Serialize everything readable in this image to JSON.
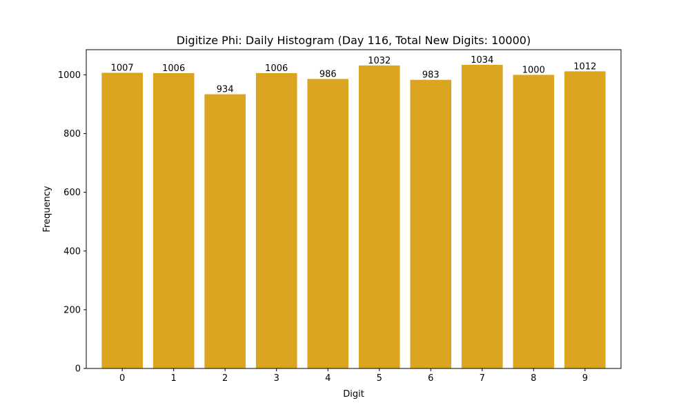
{
  "chart_data": {
    "type": "bar",
    "title": "Digitize Phi: Daily Histogram (Day 116, Total New Digits: 10000)",
    "xlabel": "Digit",
    "ylabel": "Frequency",
    "categories": [
      "0",
      "1",
      "2",
      "3",
      "4",
      "5",
      "6",
      "7",
      "8",
      "9"
    ],
    "values": [
      1007,
      1006,
      934,
      1006,
      986,
      1032,
      983,
      1034,
      1000,
      1012
    ],
    "data_labels": [
      "1007",
      "1006",
      "934",
      "1006",
      "986",
      "1032",
      "983",
      "1034",
      "1000",
      "1012"
    ],
    "yticks": [
      0,
      200,
      400,
      600,
      800,
      1000
    ],
    "ytick_labels": [
      "0",
      "200",
      "400",
      "600",
      "800",
      "1000"
    ],
    "ylim": [
      0,
      1085.7
    ],
    "grid": false,
    "legend": "none",
    "bar_color": "#DAA520"
  }
}
